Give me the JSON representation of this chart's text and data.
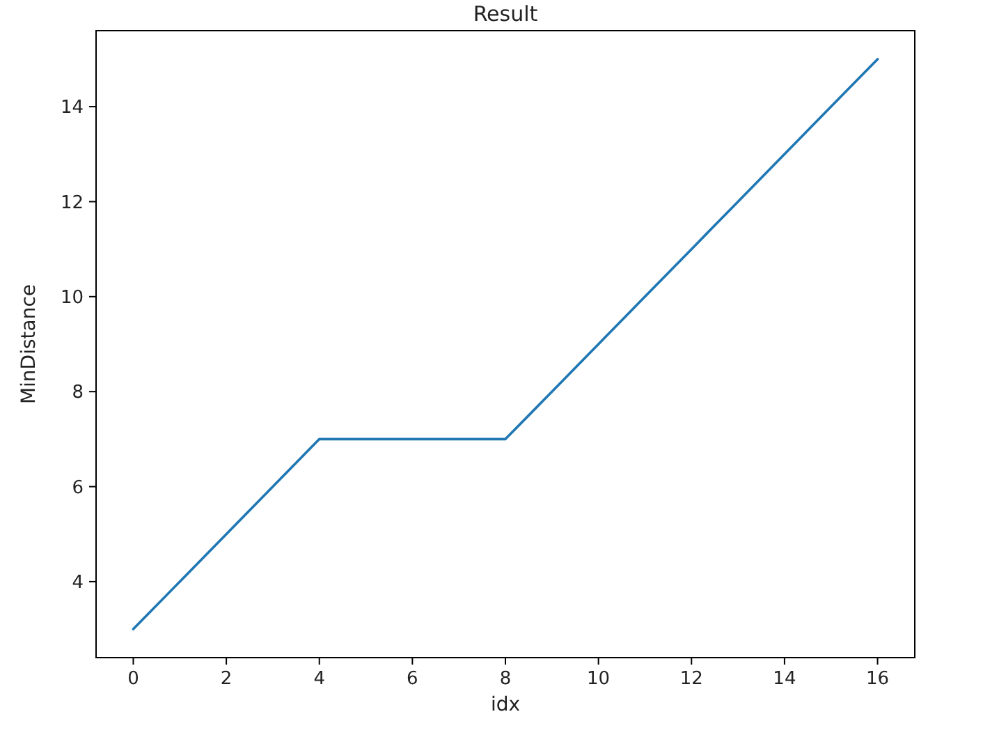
{
  "chart_data": {
    "type": "line",
    "title": "Result",
    "xlabel": "idx",
    "ylabel": "MinDistance",
    "x": [
      0,
      1,
      2,
      3,
      4,
      5,
      6,
      7,
      8,
      9,
      10,
      11,
      12,
      13,
      14,
      15,
      16
    ],
    "series": [
      {
        "color": "#1f77b4",
        "values": [
          3,
          4,
          5,
          6,
          7,
          7,
          7,
          7,
          7,
          8,
          9,
          10,
          11,
          12,
          13,
          14,
          15
        ]
      }
    ],
    "xlim": [
      -0.8,
      16.8
    ],
    "ylim": [
      2.4,
      15.6
    ],
    "xticks": [
      0,
      2,
      4,
      6,
      8,
      10,
      12,
      14,
      16
    ],
    "yticks": [
      4,
      6,
      8,
      10,
      12,
      14
    ]
  }
}
